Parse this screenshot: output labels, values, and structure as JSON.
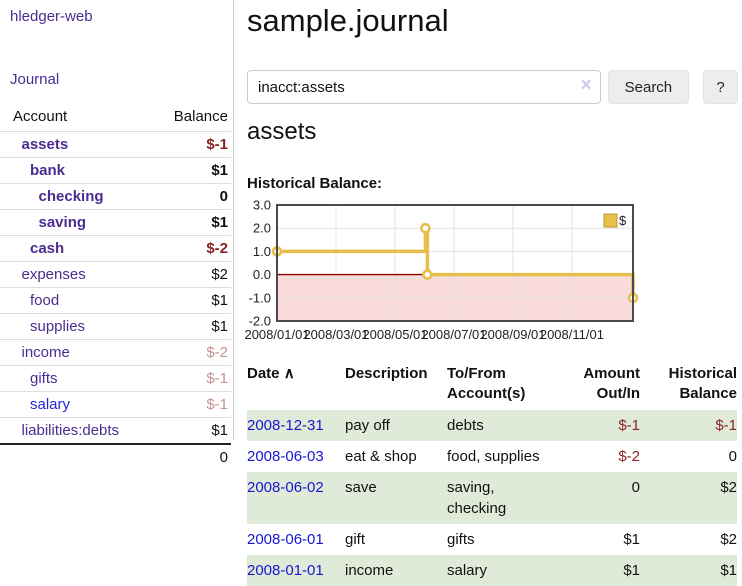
{
  "sidebar": {
    "brand": "hledger-web",
    "nav": {
      "journal_label": "Journal"
    },
    "accounts_table": {
      "headers": {
        "account": "Account",
        "balance": "Balance"
      },
      "rows": [
        {
          "name": "assets",
          "level": 1,
          "bold": true,
          "blue": false,
          "balance": "$-1",
          "balance_style": "neg-strong"
        },
        {
          "name": "bank",
          "level": 2,
          "bold": true,
          "blue": false,
          "balance": "$1",
          "balance_style": "pos"
        },
        {
          "name": "checking",
          "level": 3,
          "bold": true,
          "blue": false,
          "balance": "0",
          "balance_style": "pos"
        },
        {
          "name": "saving",
          "level": 3,
          "bold": true,
          "blue": false,
          "balance": "$1",
          "balance_style": "pos"
        },
        {
          "name": "cash",
          "level": 2,
          "bold": true,
          "blue": false,
          "balance": "$-2",
          "balance_style": "neg-strong"
        },
        {
          "name": "expenses",
          "level": 1,
          "bold": false,
          "blue": false,
          "balance": "$2",
          "balance_style": "pos"
        },
        {
          "name": "food",
          "level": 2,
          "bold": false,
          "blue": false,
          "balance": "$1",
          "balance_style": "pos"
        },
        {
          "name": "supplies",
          "level": 2,
          "bold": false,
          "blue": false,
          "balance": "$1",
          "balance_style": "pos"
        },
        {
          "name": "income",
          "level": 1,
          "bold": false,
          "blue": false,
          "balance": "$-2",
          "balance_style": "neg-muted"
        },
        {
          "name": "gifts",
          "level": 2,
          "bold": false,
          "blue": false,
          "balance": "$-1",
          "balance_style": "neg-muted"
        },
        {
          "name": "salary",
          "level": 2,
          "bold": false,
          "blue": true,
          "balance": "$-1",
          "balance_style": "neg-muted"
        },
        {
          "name": "liabilities:debts",
          "level": 1,
          "bold": false,
          "blue": false,
          "balance": "$1",
          "balance_style": "pos"
        }
      ],
      "total": "0"
    }
  },
  "main": {
    "title": "sample.journal",
    "search": {
      "value": "inacct:assets",
      "clear_icon": "×",
      "button_label": "Search",
      "help_label": "?"
    },
    "account_heading": "assets",
    "chart_label": "Historical Balance:",
    "register_table": {
      "headers": {
        "date": "Date",
        "sort_icon": "∧",
        "description": "Description",
        "account": "To/From Account(s)",
        "amount": "Amount Out/In",
        "balance": "Historical Balance"
      },
      "rows": [
        {
          "date": "2008-12-31",
          "description": "pay off",
          "accounts": "debts",
          "amount": "$-1",
          "amount_neg": true,
          "balance": "$-1",
          "balance_neg": true
        },
        {
          "date": "2008-06-03",
          "description": "eat & shop",
          "accounts": "food, supplies",
          "amount": "$-2",
          "amount_neg": true,
          "balance": "0",
          "balance_neg": false
        },
        {
          "date": "2008-06-02",
          "description": "save",
          "accounts": "saving, checking",
          "amount": "0",
          "amount_neg": false,
          "balance": "$2",
          "balance_neg": false
        },
        {
          "date": "2008-06-01",
          "description": "gift",
          "accounts": "gifts",
          "amount": "$1",
          "amount_neg": false,
          "balance": "$2",
          "balance_neg": false
        },
        {
          "date": "2008-01-01",
          "description": "income",
          "accounts": "salary",
          "amount": "$1",
          "amount_neg": false,
          "balance": "$1",
          "balance_neg": false
        }
      ]
    }
  },
  "chart_data": {
    "type": "line",
    "title": "Historical Balance:",
    "step": true,
    "series": [
      {
        "name": "$",
        "color": "#e7bf4c",
        "points": [
          {
            "date": "2008-01-01",
            "x_months": 0.0,
            "value": 1
          },
          {
            "date": "2008-06-01",
            "x_months": 5.03,
            "value": 2
          },
          {
            "date": "2008-06-03",
            "x_months": 5.1,
            "value": 0
          },
          {
            "date": "2008-12-31",
            "x_months": 12.07,
            "value": -1
          }
        ]
      }
    ],
    "ylim": [
      -2,
      3
    ],
    "yticks": [
      "3.0",
      "2.0",
      "1.0",
      "0.0",
      "-1.0",
      "-2.0"
    ],
    "xticks": [
      {
        "label": "2008/01/01",
        "x_months": 0
      },
      {
        "label": "2008/03/01",
        "x_months": 2
      },
      {
        "label": "2008/05/01",
        "x_months": 4
      },
      {
        "label": "2008/07/01",
        "x_months": 6
      },
      {
        "label": "2008/09/01",
        "x_months": 8
      },
      {
        "label": "2008/11/01",
        "x_months": 10
      }
    ],
    "x_months_max": 12.07,
    "grid": true,
    "legend": {
      "label": "$",
      "swatch_color": "#e7bf4c",
      "position": "top-right"
    },
    "negative_region_color": "#fadbdb",
    "zero_line_color": "#8b0000"
  },
  "colors": {
    "purple": "#4b2d91",
    "blue": "#2424d6",
    "date-blue": "#1717cf",
    "neg-strong": "#8c2323",
    "neg-muted": "#c49292",
    "stripe": "#dfead9",
    "gold": "#e7bf4c",
    "pink": "#fadbdb",
    "zero": "#8b0000",
    "btn": "#ededed",
    "bdr": "#cccccc"
  }
}
